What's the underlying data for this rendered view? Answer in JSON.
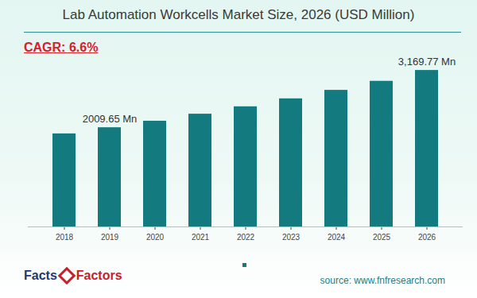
{
  "chart_data": {
    "type": "bar",
    "title": "Lab Automation Workcells Market Size, 2026 (USD Million)",
    "subtitle": "CAGR: 6.6%",
    "categories": [
      "2018",
      "2019",
      "2020",
      "2021",
      "2022",
      "2023",
      "2024",
      "2025",
      "2026"
    ],
    "values": [
      1885,
      2009.65,
      2142,
      2284,
      2434,
      2595,
      2767,
      2950,
      3169.77
    ],
    "color": "#137a7f",
    "ylim": [
      0,
      3300
    ],
    "yticks": [],
    "tick_labels": "x",
    "grid": false,
    "annotations": [
      {
        "category": "2019",
        "value": 2009.65,
        "text": "2009.65 Mn"
      },
      {
        "category": "2026",
        "value": 3169.77,
        "text": "3,169.77 Mn"
      }
    ],
    "source": "source: www.fnfresearch.com",
    "logo": [
      "Facts",
      "Factors"
    ]
  }
}
